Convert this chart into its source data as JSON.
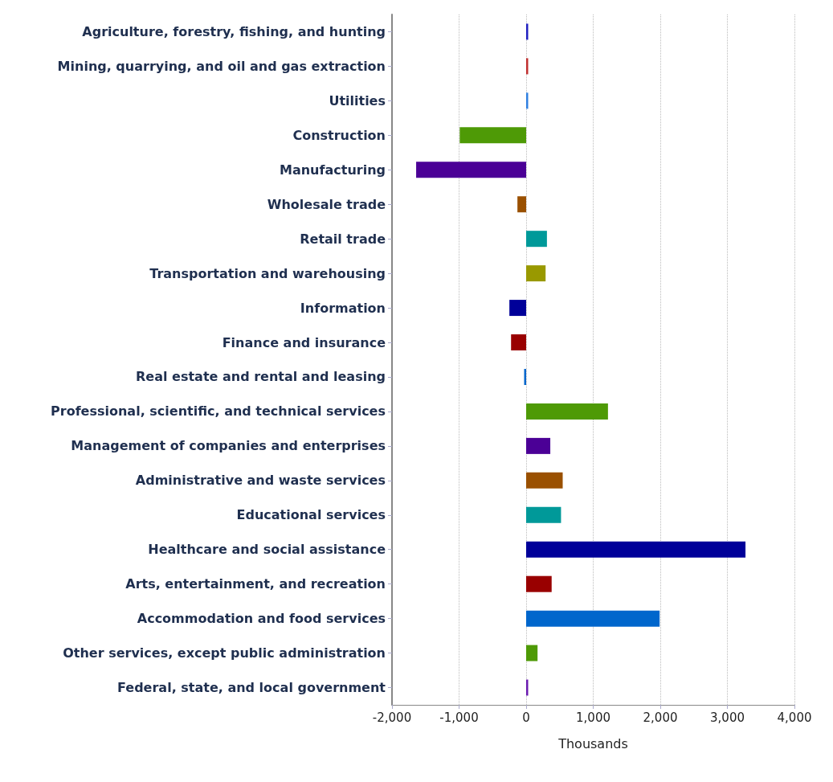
{
  "chart_data": {
    "type": "bar",
    "orientation": "horizontal",
    "xlabel": "Thousands",
    "categories": [
      "Agriculture, forestry, fishing, and hunting",
      "Mining, quarrying, and oil and gas extraction",
      "Utilities",
      "Construction",
      "Manufacturing",
      "Wholesale trade",
      "Retail trade",
      "Transportation and warehousing",
      "Information",
      "Finance and insurance",
      "Real estate and rental and leasing",
      "Professional, scientific, and technical services",
      "Management of companies and enterprises",
      "Administrative and waste services",
      "Educational services",
      "Healthcare and social assistance",
      "Arts, entertainment, and recreation",
      "Accommodation and food services",
      "Other services, except public administration",
      "Federal, state, and local government"
    ],
    "values": [
      30,
      30,
      30,
      -990,
      -1640,
      -130,
      310,
      290,
      -250,
      -225,
      -30,
      1220,
      360,
      545,
      520,
      3270,
      380,
      1990,
      170,
      30
    ],
    "colors": [
      "#2020c0",
      "#c03030",
      "#3080e0",
      "#4e9a06",
      "#4b0096",
      "#9a5000",
      "#009999",
      "#999900",
      "#000099",
      "#990000",
      "#0066cc",
      "#4e9a06",
      "#4b0096",
      "#9a5000",
      "#009999",
      "#000099",
      "#990000",
      "#0066cc",
      "#4e9a06",
      "#6a1bb0"
    ],
    "xlim": [
      -2000,
      4000
    ],
    "xticks": [
      {
        "value": -2000,
        "label": "-2,000"
      },
      {
        "value": -1000,
        "label": "-1,000"
      },
      0,
      {
        "value": 1000,
        "label": "1,000"
      },
      {
        "value": 2000,
        "label": "2,000"
      },
      {
        "value": 3000,
        "label": "3,000"
      },
      {
        "value": 4000,
        "label": "4,000"
      }
    ],
    "grid": "x"
  }
}
